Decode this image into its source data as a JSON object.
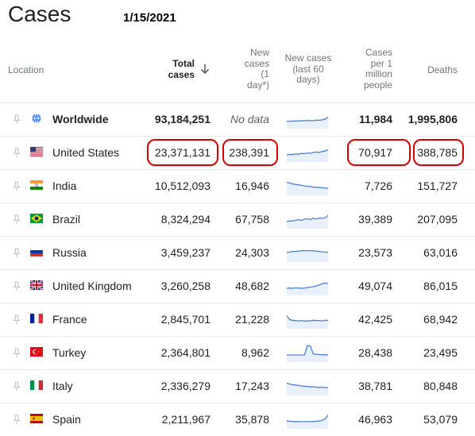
{
  "title": "Cases",
  "date": "1/15/2021",
  "headers": {
    "location": "Location",
    "total_cases": [
      "Total",
      "cases"
    ],
    "new_cases": [
      "New",
      "cases",
      "(1",
      "day*)"
    ],
    "new_cases_60": [
      "New cases",
      "(last 60",
      "days)"
    ],
    "per_million": [
      "Cases",
      "per 1",
      "million",
      "people"
    ],
    "deaths": "Deaths"
  },
  "rows": [
    {
      "location": "Worldwide",
      "total": "93,184,251",
      "new": "No data",
      "per_million": "11,984",
      "deaths": "1,995,806",
      "flag": "globe-icon",
      "bold": true,
      "nodata": true,
      "trend": [
        30,
        32,
        31,
        33,
        32,
        34,
        33,
        35,
        34,
        33,
        36,
        35,
        37,
        40,
        48
      ]
    },
    {
      "location": "United States",
      "total": "23,371,131",
      "new": "238,391",
      "per_million": "70,917",
      "deaths": "388,785",
      "flag": "us-flag-icon",
      "trend": [
        30,
        32,
        31,
        34,
        33,
        36,
        35,
        38,
        37,
        40,
        42,
        40,
        44,
        46,
        52
      ]
    },
    {
      "location": "India",
      "total": "10,512,093",
      "new": "16,946",
      "per_million": "7,726",
      "deaths": "151,727",
      "flag": "india-flag-icon",
      "trend": [
        55,
        52,
        48,
        46,
        44,
        42,
        40,
        38,
        37,
        35,
        34,
        33,
        32,
        31,
        30
      ]
    },
    {
      "location": "Brazil",
      "total": "8,324,294",
      "new": "67,758",
      "per_million": "39,389",
      "deaths": "207,095",
      "flag": "brazil-flag-icon",
      "trend": [
        30,
        33,
        32,
        36,
        38,
        35,
        40,
        42,
        38,
        44,
        41,
        45,
        43,
        46,
        56
      ]
    },
    {
      "location": "Russia",
      "total": "3,459,237",
      "new": "24,303",
      "per_million": "23,573",
      "deaths": "63,016",
      "flag": "russia-flag-icon",
      "trend": [
        40,
        42,
        44,
        45,
        46,
        47,
        48,
        48,
        48,
        47,
        46,
        45,
        43,
        42,
        40
      ]
    },
    {
      "location": "United Kingdom",
      "total": "3,260,258",
      "new": "48,682",
      "per_million": "49,074",
      "deaths": "86,015",
      "flag": "uk-flag-icon",
      "trend": [
        30,
        31,
        30,
        32,
        31,
        30,
        31,
        33,
        35,
        37,
        40,
        44,
        49,
        52,
        50
      ]
    },
    {
      "location": "France",
      "total": "2,845,701",
      "new": "21,228",
      "per_million": "42,425",
      "deaths": "68,942",
      "flag": "france-flag-icon",
      "trend": [
        55,
        38,
        36,
        34,
        33,
        35,
        32,
        34,
        33,
        36,
        34,
        35,
        33,
        36,
        35
      ]
    },
    {
      "location": "Turkey",
      "total": "2,364,801",
      "new": "8,962",
      "per_million": "28,438",
      "deaths": "23,495",
      "flag": "turkey-flag-icon",
      "trend": [
        30,
        30,
        30,
        30,
        30,
        30,
        30,
        70,
        68,
        34,
        33,
        32,
        31,
        31,
        30
      ]
    },
    {
      "location": "Italy",
      "total": "2,336,279",
      "new": "17,243",
      "per_million": "38,781",
      "deaths": "80,848",
      "flag": "italy-flag-icon",
      "trend": [
        52,
        48,
        45,
        44,
        42,
        40,
        39,
        38,
        36,
        37,
        35,
        34,
        35,
        33,
        34
      ]
    },
    {
      "location": "Spain",
      "total": "2,211,967",
      "new": "35,878",
      "per_million": "46,963",
      "deaths": "53,079",
      "flag": "spain-flag-icon",
      "trend": [
        34,
        32,
        31,
        30,
        31,
        30,
        30,
        31,
        30,
        31,
        32,
        33,
        36,
        42,
        58
      ]
    }
  ],
  "colors": {
    "highlight": "#d60000",
    "spark_line": "#4a80d6",
    "spark_fill": "#e8f0fe"
  }
}
